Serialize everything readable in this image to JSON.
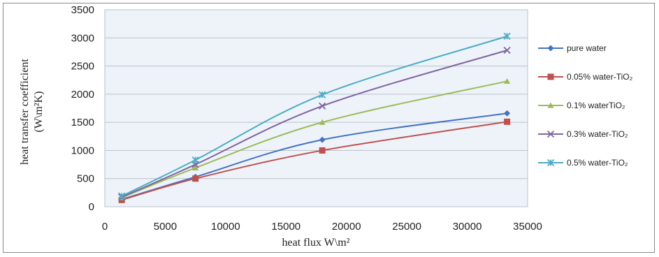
{
  "chart_data": {
    "type": "line",
    "xlabel": "heat flux W\\m²",
    "ylabel_line1": "heat transfer coefficient",
    "ylabel_line2": "(W\\m²K)",
    "xlim": [
      0,
      35000
    ],
    "ylim": [
      0,
      3500
    ],
    "x_ticks": [
      0,
      5000,
      10000,
      15000,
      20000,
      25000,
      30000,
      35000
    ],
    "y_ticks": [
      0,
      500,
      1000,
      1500,
      2000,
      2500,
      3000,
      3500
    ],
    "grid": "horizontal",
    "legend_position": "right",
    "series": [
      {
        "name": "pure water",
        "marker": "diamond",
        "color": "#4472c4",
        "x": [
          1400,
          7500,
          18000,
          33300
        ],
        "y": [
          130,
          530,
          1190,
          1660
        ]
      },
      {
        "name": "0.05% water-TiO₂",
        "marker": "square",
        "color": "#c0504d",
        "x": [
          1400,
          7500,
          18000,
          33300
        ],
        "y": [
          120,
          500,
          1000,
          1510
        ]
      },
      {
        "name": "0.1% waterTiO₂",
        "marker": "triangle",
        "color": "#9bbb59",
        "x": [
          1400,
          7500,
          18000,
          33300
        ],
        "y": [
          160,
          690,
          1500,
          2230
        ]
      },
      {
        "name": "0.3% water-TiO₂",
        "marker": "x",
        "color": "#8064a2",
        "x": [
          1400,
          7500,
          18000,
          33300
        ],
        "y": [
          170,
          750,
          1790,
          2780
        ]
      },
      {
        "name": "0.5% water-TiO₂",
        "marker": "star",
        "color": "#4bacc6",
        "x": [
          1400,
          7500,
          18000,
          33300
        ],
        "y": [
          190,
          830,
          1990,
          3030
        ]
      }
    ]
  }
}
